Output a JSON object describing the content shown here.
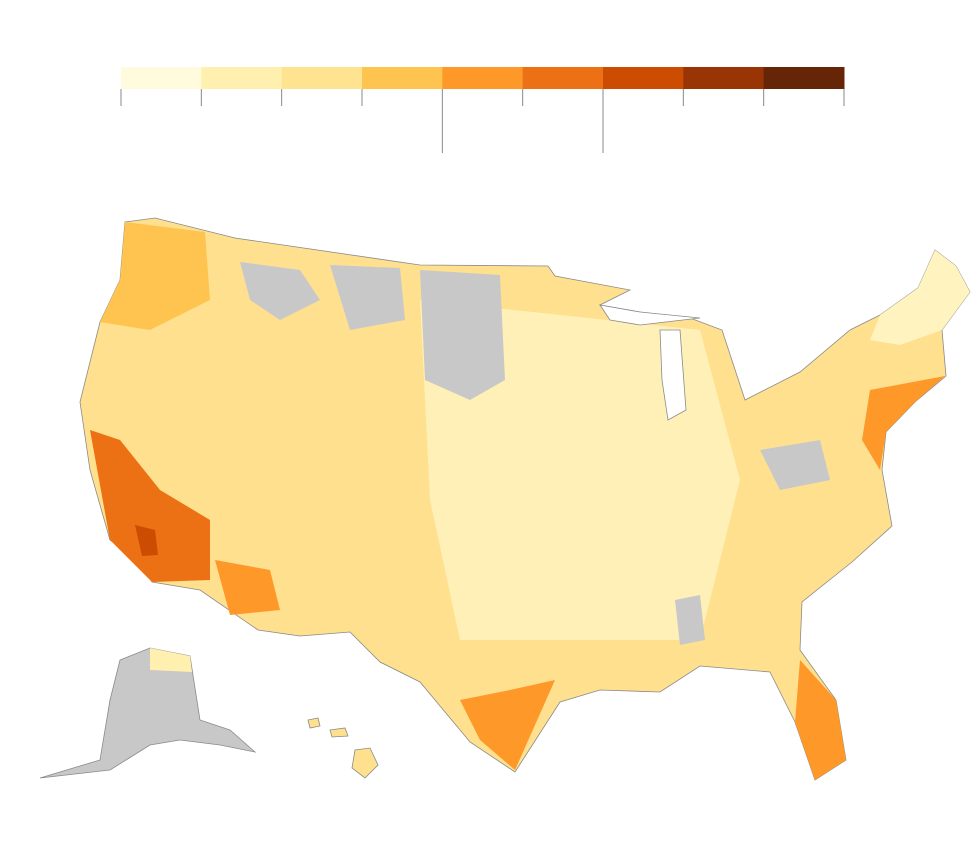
{
  "legend": {
    "colors": [
      "#fffbdc",
      "#fff0b0",
      "#fee391",
      "#fec44f",
      "#fe9929",
      "#ec7014",
      "#cc4c02",
      "#993404",
      "#662506"
    ]
  },
  "map": {
    "no_data_color": "#c8c8c8"
  }
}
